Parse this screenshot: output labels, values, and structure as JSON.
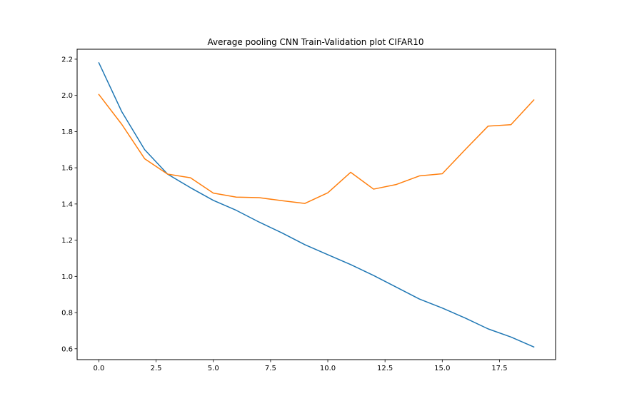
{
  "chart_data": {
    "type": "line",
    "title": "Average pooling CNN Train-Validation plot CIFAR10",
    "xlabel": "",
    "ylabel": "",
    "xlim": [
      -0.95,
      19.95
    ],
    "ylim": [
      0.54,
      2.255
    ],
    "xticks": [
      0,
      2.5,
      5,
      7.5,
      10,
      12.5,
      15,
      17.5
    ],
    "xtick_labels": [
      "0.0",
      "2.5",
      "5.0",
      "7.5",
      "10.0",
      "12.5",
      "15.0",
      "17.5"
    ],
    "yticks": [
      0.6,
      0.8,
      1.0,
      1.2,
      1.4,
      1.6,
      1.8,
      2.0,
      2.2
    ],
    "ytick_labels": [
      "0.6",
      "0.8",
      "1.0",
      "1.2",
      "1.4",
      "1.6",
      "1.8",
      "2.0",
      "2.2"
    ],
    "grid": false,
    "x": [
      0,
      1,
      2,
      3,
      4,
      5,
      6,
      7,
      8,
      9,
      10,
      11,
      12,
      13,
      14,
      15,
      16,
      17,
      18,
      19
    ],
    "series": [
      {
        "color": "#1f77b4",
        "values": [
          2.18,
          1.91,
          1.7,
          1.565,
          1.49,
          1.42,
          1.365,
          1.3,
          1.24,
          1.175,
          1.12,
          1.065,
          1.005,
          0.94,
          0.875,
          0.825,
          0.77,
          0.71,
          0.665,
          0.61
        ]
      },
      {
        "color": "#ff7f0e",
        "values": [
          2.005,
          1.84,
          1.65,
          1.565,
          1.545,
          1.46,
          1.438,
          1.435,
          1.418,
          1.403,
          1.462,
          1.575,
          1.482,
          1.508,
          1.555,
          1.567,
          1.7,
          1.83,
          1.838,
          1.975
        ]
      }
    ]
  }
}
